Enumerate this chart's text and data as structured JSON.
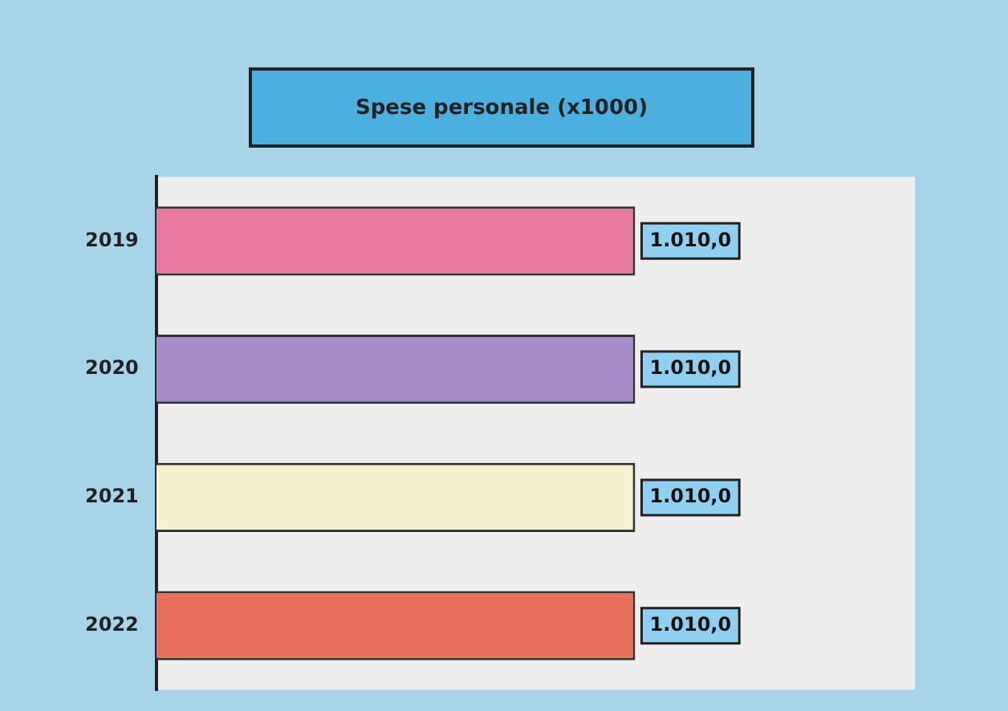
{
  "chart_data": {
    "type": "bar",
    "orientation": "horizontal",
    "tick_labels": "y",
    "title": "Spese personale (x1000)",
    "categories": [
      "2019",
      "2020",
      "2021",
      "2022"
    ],
    "values": [
      1010.0,
      1010.0,
      1010.0,
      1010.0
    ],
    "colors": [
      "#e8789f",
      "#a88cc8",
      "#f5f0d0",
      "#e8705a"
    ],
    "value_labels": [
      "1.010,0",
      "1.010,0",
      "1.010,0",
      "1.010,0"
    ]
  }
}
